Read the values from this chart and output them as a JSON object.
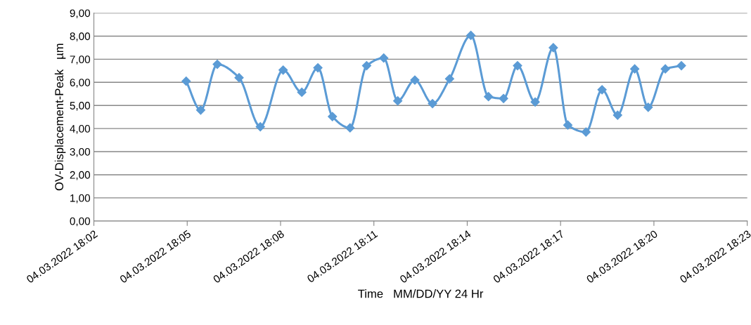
{
  "chart_data": {
    "type": "line",
    "xlabel": "Time   MM/DD/YY 24 Hr",
    "ylabel": "OV-Displacement-Peak   µm",
    "x": [
      "2022-03-04T18:04:58",
      "2022-03-04T18:05:26",
      "2022-03-04T18:05:58",
      "2022-03-04T18:06:40",
      "2022-03-04T18:07:21",
      "2022-03-04T18:08:05",
      "2022-03-04T18:08:41",
      "2022-03-04T18:09:12",
      "2022-03-04T18:09:40",
      "2022-03-04T18:10:14",
      "2022-03-04T18:10:46",
      "2022-03-04T18:11:19",
      "2022-03-04T18:11:46",
      "2022-03-04T18:12:19",
      "2022-03-04T18:12:53",
      "2022-03-04T18:13:26",
      "2022-03-04T18:14:07",
      "2022-03-04T18:14:41",
      "2022-03-04T18:15:10",
      "2022-03-04T18:15:37",
      "2022-03-04T18:16:11",
      "2022-03-04T18:16:46",
      "2022-03-04T18:17:14",
      "2022-03-04T18:17:49",
      "2022-03-04T18:18:20",
      "2022-03-04T18:18:50",
      "2022-03-04T18:19:23",
      "2022-03-04T18:19:49",
      "2022-03-04T18:20:22",
      "2022-03-04T18:20:53"
    ],
    "series": [
      {
        "color": "#5b9bd5",
        "values": [
          6.05,
          4.8,
          6.78,
          6.2,
          4.08,
          6.53,
          5.57,
          6.63,
          4.52,
          4.03,
          6.72,
          7.05,
          5.2,
          6.1,
          5.08,
          6.15,
          8.03,
          5.38,
          5.3,
          6.72,
          5.15,
          7.5,
          4.15,
          3.85,
          5.68,
          4.58,
          6.58,
          4.92,
          6.58,
          6.72
        ]
      }
    ],
    "xlim": [
      "2022-03-04T18:02",
      "2022-03-04T18:23"
    ],
    "xticks": [
      {
        "value": "2022-03-04T18:02",
        "label": "04.03.2022 18:02"
      },
      {
        "value": "2022-03-04T18:05",
        "label": "04.03.2022 18:05"
      },
      {
        "value": "2022-03-04T18:08",
        "label": "04.03.2022 18:08"
      },
      {
        "value": "2022-03-04T18:11",
        "label": "04.03.2022 18:11"
      },
      {
        "value": "2022-03-04T18:14",
        "label": "04.03.2022 18:14"
      },
      {
        "value": "2022-03-04T18:17",
        "label": "04.03.2022 18:17"
      },
      {
        "value": "2022-03-04T18:20",
        "label": "04.03.2022 18:20"
      },
      {
        "value": "2022-03-04T18:23",
        "label": "04.03.2022 18:23"
      }
    ],
    "ylim": [
      0,
      9
    ],
    "yticks": [
      {
        "value": 0,
        "label": "0,00"
      },
      {
        "value": 1,
        "label": "1,00"
      },
      {
        "value": 2,
        "label": "2,00"
      },
      {
        "value": 3,
        "label": "3,00"
      },
      {
        "value": 4,
        "label": "4,00"
      },
      {
        "value": 5,
        "label": "5,00"
      },
      {
        "value": 6,
        "label": "6,00"
      },
      {
        "value": 7,
        "label": "7,00"
      },
      {
        "value": 8,
        "label": "8,00"
      },
      {
        "value": 9,
        "label": "9,00"
      }
    ],
    "grid": "y",
    "marker": "diamond",
    "line_style": "solid"
  }
}
